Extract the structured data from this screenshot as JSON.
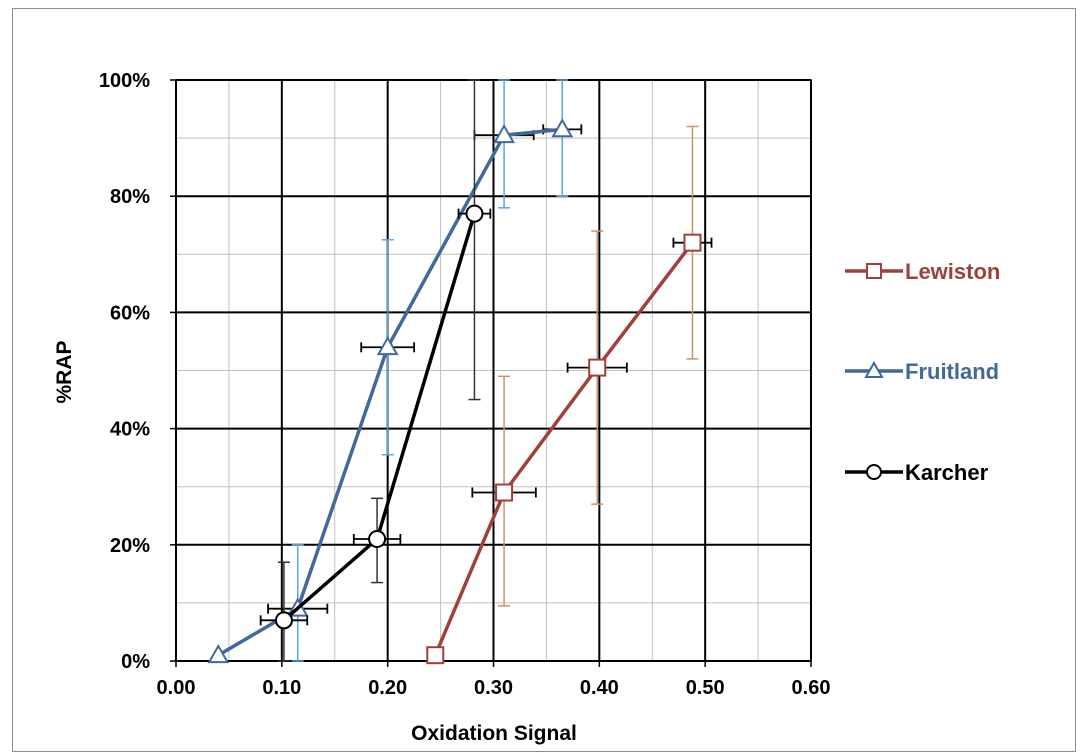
{
  "chart_data": {
    "type": "line",
    "xlabel": "Oxidation Signal",
    "ylabel": "%RAP",
    "xlim": [
      0,
      0.6
    ],
    "ylim": [
      0,
      100
    ],
    "x_major_ticks": [
      0,
      0.1,
      0.2,
      0.3,
      0.4,
      0.5,
      0.6
    ],
    "x_tick_labels": [
      "0.00",
      "0.10",
      "0.20",
      "0.30",
      "0.40",
      "0.50",
      "0.60"
    ],
    "x_minor_step": 0.05,
    "y_major_ticks": [
      0,
      20,
      40,
      60,
      80,
      100
    ],
    "y_tick_labels": [
      "0%",
      "20%",
      "40%",
      "60%",
      "80%",
      "100%"
    ],
    "y_minor_step": 10,
    "grid": true,
    "legend_position": "right",
    "series": [
      {
        "name": "Lewiston",
        "color": "#a0403c",
        "errbar_color": "#c8956a",
        "marker": "square",
        "points": [
          {
            "x": 0.245,
            "y": 1,
            "xerr": 0,
            "yerr": [
              0,
              0
            ]
          },
          {
            "x": 0.31,
            "y": 29,
            "xerr": 0.03,
            "yerr": [
              9.5,
              49
            ]
          },
          {
            "x": 0.398,
            "y": 50.5,
            "xerr": 0.028,
            "yerr": [
              27,
              74
            ]
          },
          {
            "x": 0.488,
            "y": 72,
            "xerr": 0.018,
            "yerr": [
              52,
              92
            ]
          }
        ]
      },
      {
        "name": "Fruitland",
        "color": "#41699c",
        "errbar_color": "#5ea3dc",
        "marker": "triangle",
        "points": [
          {
            "x": 0.04,
            "y": 1,
            "xerr": 0,
            "yerr": [
              0,
              0
            ]
          },
          {
            "x": 0.115,
            "y": 9,
            "xerr": 0.028,
            "yerr": [
              0,
              20
            ]
          },
          {
            "x": 0.2,
            "y": 54,
            "xerr": 0.025,
            "yerr": [
              35.5,
              72.5
            ]
          },
          {
            "x": 0.31,
            "y": 90.5,
            "xerr": 0.028,
            "yerr": [
              78,
              100
            ]
          },
          {
            "x": 0.365,
            "y": 91.5,
            "xerr": 0.018,
            "yerr": [
              80,
              100
            ]
          }
        ]
      },
      {
        "name": "Karcher",
        "color": "#000000",
        "errbar_color": "#333333",
        "marker": "circle",
        "points": [
          {
            "x": 0.102,
            "y": 7,
            "xerr": 0.022,
            "yerr": [
              0,
              17
            ]
          },
          {
            "x": 0.19,
            "y": 21,
            "xerr": 0.022,
            "yerr": [
              13.5,
              28
            ]
          },
          {
            "x": 0.282,
            "y": 77,
            "xerr": 0.015,
            "yerr": [
              45,
              100
            ]
          }
        ]
      }
    ]
  }
}
